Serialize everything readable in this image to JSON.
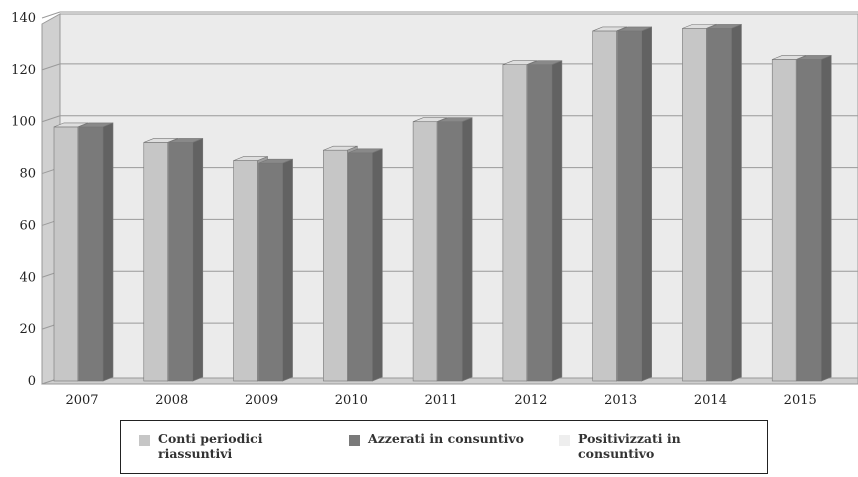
{
  "chart_data": {
    "type": "bar",
    "categories": [
      "2007",
      "2008",
      "2009",
      "2010",
      "2011",
      "2012",
      "2013",
      "2014",
      "2015"
    ],
    "series": [
      {
        "name": "Conti periodici riassuntivi",
        "values": [
          98,
          92,
          85,
          89,
          100,
          122,
          135,
          136,
          124
        ],
        "color": "#c6c6c6"
      },
      {
        "name": "Azzerati in consuntivo",
        "values": [
          98,
          92,
          84,
          88,
          100,
          122,
          135,
          136,
          124
        ],
        "color": "#7a7a7a"
      },
      {
        "name": "Positivizzati in consuntivo",
        "values": [
          0,
          0,
          0,
          0,
          0,
          0,
          0,
          0,
          0
        ],
        "color": "#eeeeee"
      }
    ],
    "yticks": [
      0,
      20,
      40,
      60,
      80,
      100,
      120,
      140
    ],
    "ylim": [
      0,
      140
    ],
    "grid": true,
    "legend_position": "bottom",
    "title": "",
    "xlabel": "",
    "ylabel": ""
  },
  "legend": [
    {
      "label": "Conti periodici riassuntivi",
      "color": "#c6c6c6"
    },
    {
      "label": "Azzerati in consuntivo",
      "color": "#7a7a7a"
    },
    {
      "label": "Positivizzati in consuntivo",
      "color": "#eeeeee"
    }
  ]
}
